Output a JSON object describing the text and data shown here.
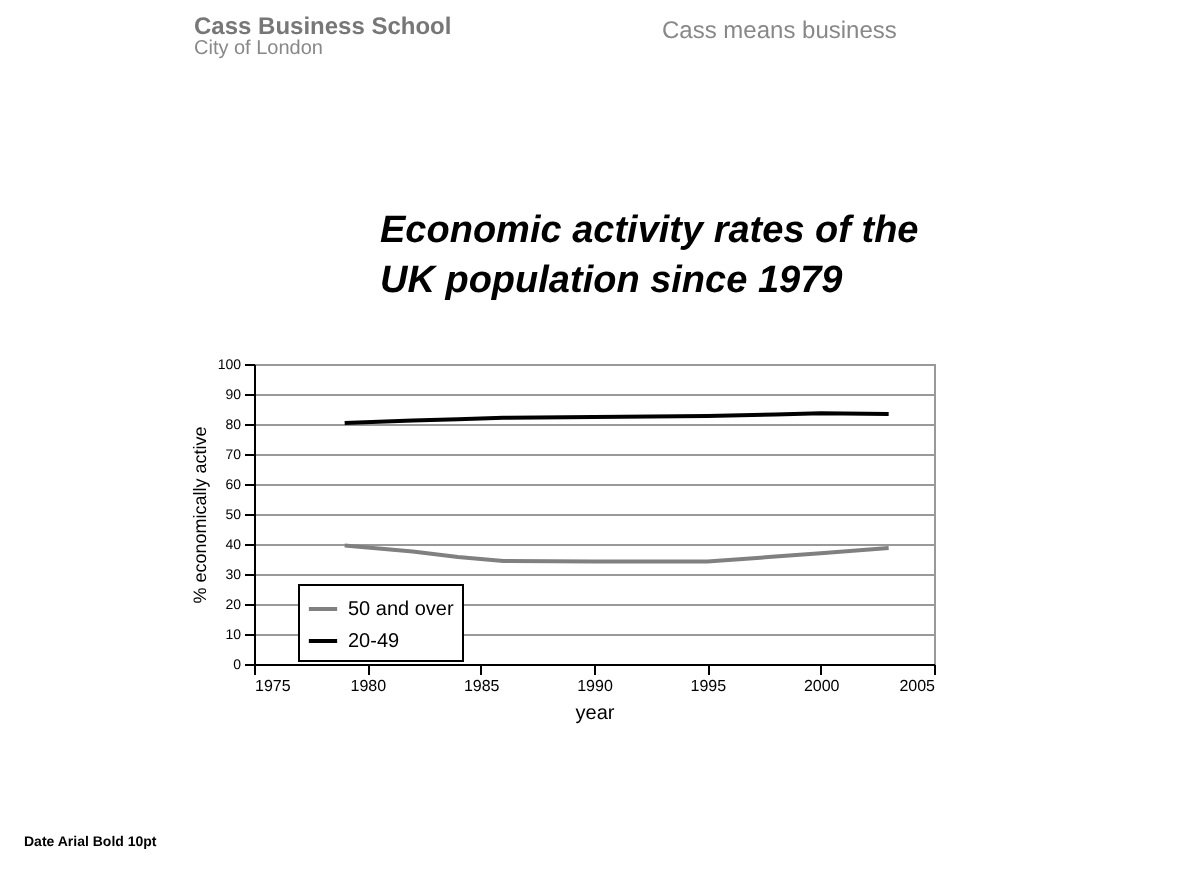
{
  "chart_data": {
    "type": "line",
    "title": "Economic activity rates of the\nUK population since 1979",
    "xlabel": "year",
    "ylabel": "% economically active",
    "x": [
      1979,
      1982,
      1984,
      1986,
      1990,
      1995,
      1998,
      2000,
      2003
    ],
    "series": [
      {
        "name": "50 and over",
        "color": "#808080",
        "values": [
          39.5,
          37.5,
          35.7,
          34.3,
          34.2,
          34.2,
          35.8,
          36.9,
          38.7
        ]
      },
      {
        "name": "20-49",
        "color": "#000000",
        "values": [
          80.3,
          81.2,
          81.6,
          82.1,
          82.3,
          82.7,
          83.2,
          83.6,
          83.3
        ]
      }
    ],
    "xlim": [
      1975,
      2005
    ],
    "xticks": [
      1975,
      1980,
      1985,
      1990,
      1995,
      2000,
      2005
    ],
    "ylim": [
      0,
      100
    ],
    "yticks": [
      0,
      10,
      20,
      30,
      40,
      50,
      60,
      70,
      80,
      90,
      100
    ],
    "grid": "y",
    "legend": "bottom left",
    "marker": "none",
    "line_style": "solid",
    "annotations": [
      "Cass Business School",
      "City of London",
      "Cass means business",
      "Date Arial Bold 10pt"
    ]
  }
}
